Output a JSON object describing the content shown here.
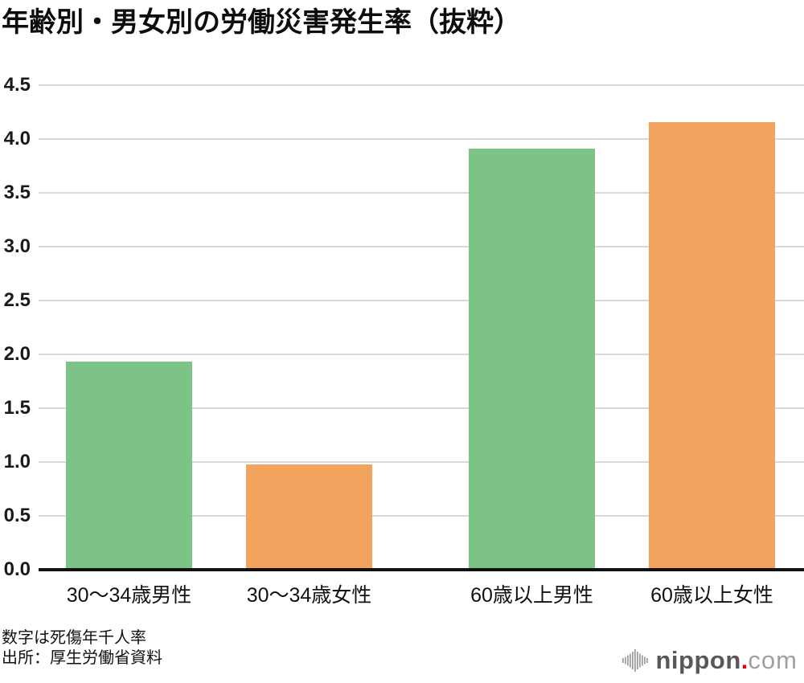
{
  "title": "年齢別・男女別の労働災害発生率（抜粋）",
  "notes": {
    "line1": "数字は死傷年千人率",
    "line2": "出所：厚生労働省資料"
  },
  "logo": {
    "icon": "soundwave-icon",
    "name": "nippon",
    "dot": ".",
    "tld": "com",
    "name_color": "#595757",
    "dot_color": "#e60012",
    "tld_color": "#9fa0a0",
    "icon_color": "#9fa0a0"
  },
  "chart_data": {
    "type": "bar",
    "title": "年齢別・男女別の労働災害発生率（抜粋）",
    "categories": [
      "30〜34歳男性",
      "30〜34歳女性",
      "60歳以上男性",
      "60歳以上女性"
    ],
    "values": [
      1.93,
      0.98,
      3.91,
      4.16
    ],
    "bar_colors": [
      "#7ec386",
      "#f2a35e",
      "#7ec386",
      "#f2a35e"
    ],
    "xlabel": "",
    "ylabel": "",
    "ylim": [
      0,
      4.5
    ],
    "ytick_step": 0.5,
    "yticks": [
      "0.0",
      "0.5",
      "1.0",
      "1.5",
      "2.0",
      "2.5",
      "3.0",
      "3.5",
      "4.0",
      "4.5"
    ],
    "grid": true,
    "gridline_color": "#d9d9d9",
    "axis_color": "#111111",
    "legend": false,
    "unit_note": "死傷年千人率",
    "source": "厚生労働省資料"
  }
}
